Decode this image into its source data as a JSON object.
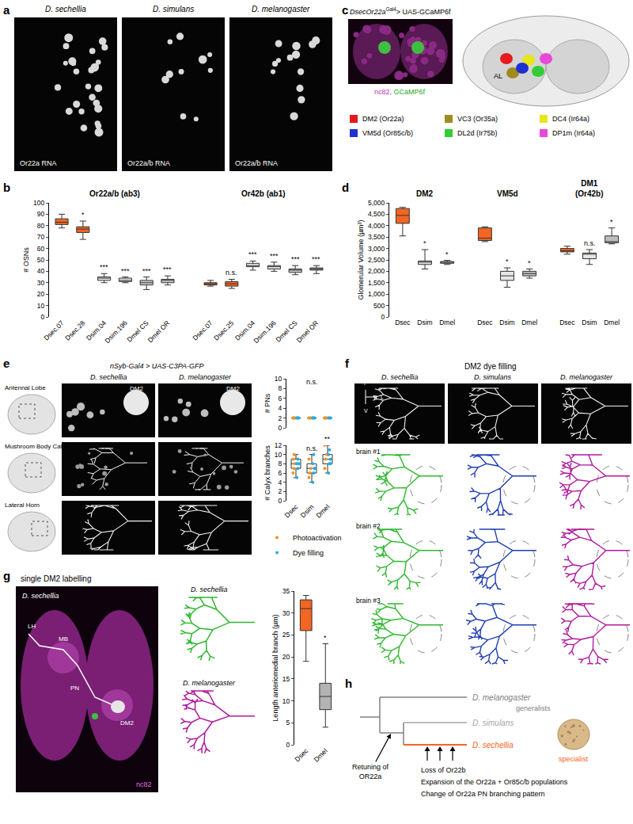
{
  "chart_data": [
    {
      "type": "box",
      "y_label": "# OSNs",
      "ylim": [
        0,
        100
      ],
      "yticks": [
        0,
        10,
        20,
        30,
        40,
        50,
        60,
        70,
        80,
        90,
        100
      ],
      "grid": false,
      "groups": [
        {
          "title": "Or22a/b (ab3)",
          "categories": [
            "Dsec.07",
            "Dsec.28",
            "Dsim.04",
            "Dsim.196",
            "Dmel CS",
            "Dmel OR"
          ],
          "colors": [
            "#f26522",
            "#f26522",
            "#e6e6e6",
            "#e6e6e6",
            "#cccccc",
            "#cccccc"
          ],
          "median": [
            83,
            77,
            34,
            32,
            30,
            32
          ],
          "q1": [
            81,
            74,
            32,
            31,
            28,
            30
          ],
          "q3": [
            86,
            79,
            35,
            34,
            32,
            33
          ],
          "min": [
            78,
            68,
            30,
            30,
            24,
            28
          ],
          "max": [
            90,
            84,
            38,
            35,
            35,
            36
          ],
          "significance": [
            null,
            "*",
            "***",
            "***",
            "***",
            "***"
          ]
        },
        {
          "title": "Or42b (ab1)",
          "categories": [
            "Dsec.07",
            "Dsec.25",
            "Dsim.04",
            "Dsim.196",
            "Dmel CS",
            "Dmel OR"
          ],
          "colors": [
            "#f26522",
            "#f26522",
            "#e6e6e6",
            "#e6e6e6",
            "#cccccc",
            "#cccccc"
          ],
          "median": [
            29,
            29,
            45,
            44,
            41,
            42
          ],
          "q1": [
            28,
            27,
            44,
            42,
            39,
            41
          ],
          "q3": [
            30,
            31,
            47,
            45,
            42,
            43
          ],
          "min": [
            27,
            25,
            41,
            40,
            37,
            38
          ],
          "max": [
            32,
            33,
            49,
            48,
            45,
            45
          ],
          "significance": [
            null,
            "n.s.",
            "***",
            "***",
            "***",
            "***"
          ]
        }
      ]
    },
    {
      "type": "box",
      "y_label": "Glomerular Volume (µm³)",
      "ylim": [
        0,
        5000
      ],
      "yticks": [
        0,
        500,
        {
          "value": 1000,
          "label": "1,000"
        },
        {
          "value": 1500,
          "label": "1,500"
        },
        {
          "value": 2000,
          "label": "2,000"
        },
        {
          "value": 2500,
          "label": "2,500"
        },
        {
          "value": 3000,
          "label": "3,000"
        },
        {
          "value": 3500,
          "label": "3,500"
        },
        {
          "value": 4000,
          "label": "4,000"
        },
        {
          "value": 4500,
          "label": "4,500"
        },
        {
          "value": 5000,
          "label": "5,000"
        }
      ],
      "grid": false,
      "groups": [
        {
          "title": "DM2",
          "categories": [
            "Dsec",
            "Dsim",
            "Dmel"
          ],
          "colors": [
            "#f26522",
            "#e6e6e6",
            "#bfbfbf"
          ],
          "median": [
            4450,
            2400,
            2400
          ],
          "q1": [
            4100,
            2300,
            2350
          ],
          "q3": [
            4750,
            2450,
            2430
          ],
          "min": [
            3550,
            2100,
            2300
          ],
          "max": [
            4800,
            2950,
            2480
          ],
          "significance": [
            null,
            "*",
            "*"
          ]
        },
        {
          "title": "VM5d",
          "categories": [
            "Dsec",
            "Dsim",
            "Dmel"
          ],
          "colors": [
            "#f26522",
            "#e6e6e6",
            "#bfbfbf"
          ],
          "median": [
            3450,
            1800,
            1900
          ],
          "q1": [
            3350,
            1600,
            1800
          ],
          "q3": [
            3900,
            2000,
            2000
          ],
          "min": [
            3300,
            1300,
            1700
          ],
          "max": [
            3950,
            2150,
            2100
          ],
          "significance": [
            null,
            "*",
            "*"
          ]
        },
        {
          "title": "DM1",
          "subtitle": "(Or42b)",
          "categories": [
            "Dsec",
            "Dsim",
            "Dmel"
          ],
          "colors": [
            "#f26522",
            "#e6e6e6",
            "#bfbfbf"
          ],
          "median": [
            2900,
            2750,
            3300
          ],
          "q1": [
            2850,
            2550,
            3250
          ],
          "q3": [
            3000,
            2800,
            3550
          ],
          "min": [
            2750,
            2300,
            3200
          ],
          "max": [
            3100,
            2950,
            3900
          ],
          "significance": [
            null,
            "n.s.",
            "*"
          ]
        }
      ]
    },
    {
      "type": "box",
      "y_label": "# PNs",
      "ylim": [
        0,
        10
      ],
      "yticks": [
        0,
        2,
        4,
        6,
        8,
        10
      ],
      "tick_labels": "y",
      "categories": [
        "Dsec",
        "Dsim",
        "Dmel"
      ],
      "group_label": "n.s.",
      "series": [
        {
          "name": "Photoactivation",
          "color": "#f7931e",
          "values": [
            [
              2,
              2,
              2,
              2
            ],
            [
              2,
              2,
              2
            ],
            [
              2,
              2,
              2,
              2
            ]
          ]
        },
        {
          "name": "Dye filling",
          "color": "#29abe2",
          "values": [
            [
              2,
              2,
              2,
              2
            ],
            [
              2,
              2,
              2,
              2
            ],
            [
              2,
              2,
              2
            ]
          ]
        }
      ]
    },
    {
      "type": "box",
      "y_label": "# Calyx branches",
      "ylim": [
        0,
        12
      ],
      "yticks": [
        0,
        2,
        4,
        6,
        8,
        10,
        12
      ],
      "legend": "bottom",
      "categories": [
        "Dsec",
        "Dsim",
        "Dmel"
      ],
      "significance": [
        null,
        "n.s.",
        "**"
      ],
      "series": [
        {
          "name": "Photoactivation",
          "color": "#f7931e",
          "values": [
            [
              6,
              7,
              8,
              9,
              10
            ],
            [
              5,
              6,
              7,
              9
            ],
            [
              7,
              9,
              10,
              12
            ]
          ]
        },
        {
          "name": "Dye filling",
          "color": "#29abe2",
          "values": [
            [
              5,
              7,
              8,
              8,
              9
            ],
            [
              4,
              6,
              7,
              8,
              10,
              7
            ],
            [
              6,
              8,
              9,
              10,
              11,
              8
            ]
          ]
        }
      ]
    },
    {
      "type": "box",
      "y_label": "Length anteriomedial branch (µm)",
      "ylim": [
        0,
        35
      ],
      "yticks": [
        0,
        5,
        10,
        15,
        20,
        25,
        30,
        35
      ],
      "categories": [
        "Dsec",
        "Dmel"
      ],
      "colors": [
        "#f26522",
        "#b3b3b3"
      ],
      "median": [
        31,
        11
      ],
      "q1": [
        26,
        8
      ],
      "q3": [
        33,
        14
      ],
      "min": [
        19,
        4
      ],
      "max": [
        34,
        23
      ],
      "significance": [
        null,
        "*"
      ]
    }
  ],
  "figure": {
    "a": {
      "label": "a",
      "images": [
        {
          "title": "D. sechellia",
          "caption": "Or22a RNA"
        },
        {
          "title": "D. simulans",
          "caption": "Or22a/b RNA"
        },
        {
          "title": "D. melanogaster",
          "caption": "Or22a/b RNA"
        }
      ]
    },
    "b": {
      "label": "b"
    },
    "c": {
      "label": "c",
      "genotype": {
        "driver": "DsecOr22a",
        "superscript": "Gal4",
        "reporter": "> UAS-GCaMP6f"
      },
      "stain": [
        {
          "text": "nc82,",
          "color": "#c030c0"
        },
        {
          "text": "GCaMP6f",
          "color": "#22aa22"
        }
      ],
      "brain_label": "AL",
      "glomeruli": [
        {
          "name": "DM2 (Or22a)",
          "color": "#e41a1c"
        },
        {
          "name": "VC3 (Or35a)",
          "color": "#a08c1e"
        },
        {
          "name": "DC4 (Ir64a)",
          "color": "#e6e619"
        },
        {
          "name": "VM5d (Or85c/b)",
          "color": "#1f30d0"
        },
        {
          "name": "DL2d (Ir75b)",
          "color": "#33cc33"
        },
        {
          "name": "DP1m (Ir64a)",
          "color": "#e649d6"
        }
      ]
    },
    "d": {
      "label": "d"
    },
    "e": {
      "label": "e",
      "genotype": "nSyb-Gal4 > UAS-C3PA-GFP",
      "columns": [
        "D. sechellia",
        "D. melanogaster"
      ],
      "rows": [
        "Antennal Lobe",
        "Mushroom Body Calyx",
        "Lateral Horn"
      ],
      "tag": "DM2"
    },
    "f": {
      "label": "f",
      "title": "DM2 dye filling",
      "columns": [
        {
          "name": "D. sechellia",
          "color": "#2eb82e"
        },
        {
          "name": "D. simulans",
          "color": "#1f3fb3"
        },
        {
          "name": "D. melanogaster",
          "color": "#b0199e"
        }
      ],
      "rows": [
        "brain #1",
        "brain #2",
        "brain #3"
      ],
      "axes": [
        "P",
        "L",
        "V"
      ]
    },
    "g": {
      "label": "g",
      "title": "single DM2 labelling",
      "species": "D. sechellia",
      "stain": "nc82",
      "regions": [
        "LH",
        "MB",
        "PN",
        "DM2"
      ],
      "traces": [
        {
          "name": "D. sechellia",
          "color": "#2eb82e"
        },
        {
          "name": "D. melanogaster",
          "color": "#b0199e"
        }
      ]
    },
    "h": {
      "label": "h",
      "tree": [
        {
          "name": "D. melanogaster",
          "color": "#808080",
          "note": "generalists"
        },
        {
          "name": "D. simulans",
          "color": "#a6a6a6"
        },
        {
          "name": "D. sechellia",
          "color": "#f26522",
          "note": "specialist"
        }
      ],
      "node_event": [
        "Retuning of",
        "OR22a"
      ],
      "branch_events": [
        "Loss of Or22b",
        "Expansion of the Or22a + Or85c/b populations",
        "Change of Or22a PN branching pattern"
      ]
    }
  }
}
